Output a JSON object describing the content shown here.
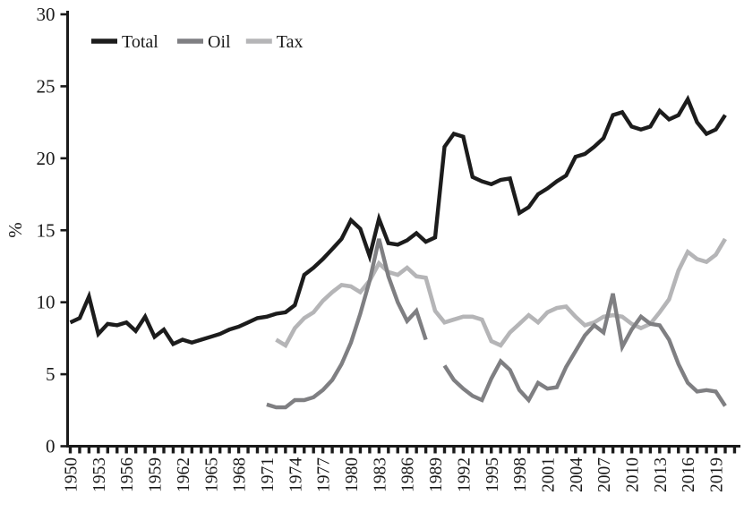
{
  "chart_data": {
    "type": "line",
    "title": "",
    "xlabel": "",
    "ylabel": "%",
    "ylim": [
      0,
      30
    ],
    "yticks": [
      0,
      5,
      10,
      15,
      20,
      25,
      30
    ],
    "x_start": 1950,
    "x_axis_end": 2021,
    "xtick_every_years": 1,
    "xtick_label_years": [
      1950,
      1953,
      1956,
      1959,
      1962,
      1965,
      1968,
      1971,
      1974,
      1977,
      1980,
      1983,
      1986,
      1989,
      1992,
      1995,
      1998,
      2001,
      2004,
      2007,
      2010,
      2013,
      2016,
      2019
    ],
    "grid": false,
    "legend_position": "top-left-inside",
    "axis_color": "#1a1a1a",
    "background_color": "#ffffff",
    "x": [
      1950,
      1951,
      1952,
      1953,
      1954,
      1955,
      1956,
      1957,
      1958,
      1959,
      1960,
      1961,
      1962,
      1963,
      1964,
      1965,
      1966,
      1967,
      1968,
      1969,
      1970,
      1971,
      1972,
      1973,
      1974,
      1975,
      1976,
      1977,
      1978,
      1979,
      1980,
      1981,
      1982,
      1983,
      1984,
      1985,
      1986,
      1987,
      1988,
      1989,
      1990,
      1991,
      1992,
      1993,
      1994,
      1995,
      1996,
      1997,
      1998,
      1999,
      2000,
      2001,
      2002,
      2003,
      2004,
      2005,
      2006,
      2007,
      2008,
      2009,
      2010,
      2011,
      2012,
      2013,
      2014,
      2015,
      2016,
      2017,
      2018,
      2019,
      2020
    ],
    "series": [
      {
        "name": "Total",
        "color": "#1c1c1c",
        "stroke_width": 4.4,
        "values": [
          8.6,
          8.9,
          10.4,
          7.8,
          8.5,
          8.4,
          8.6,
          8.0,
          9.0,
          7.6,
          8.1,
          7.1,
          7.4,
          7.2,
          7.4,
          7.6,
          7.8,
          8.1,
          8.3,
          8.6,
          8.9,
          9.0,
          9.2,
          9.3,
          9.8,
          11.9,
          12.4,
          13.0,
          13.7,
          14.4,
          15.7,
          15.1,
          13.2,
          15.8,
          14.1,
          14.0,
          14.3,
          14.8,
          14.2,
          14.5,
          20.8,
          21.7,
          21.5,
          18.7,
          18.4,
          18.2,
          18.5,
          18.6,
          16.2,
          16.6,
          17.5,
          17.9,
          18.4,
          18.8,
          20.1,
          20.3,
          20.8,
          21.4,
          23.0,
          23.2,
          22.2,
          22.0,
          22.2,
          23.3,
          22.7,
          23.0,
          24.1,
          22.5,
          21.7,
          22.0,
          23.0
        ]
      },
      {
        "name": "Oil",
        "color": "#7f7f82",
        "stroke_width": 4.4,
        "values": [
          null,
          null,
          null,
          null,
          null,
          null,
          null,
          null,
          null,
          null,
          null,
          null,
          null,
          null,
          null,
          null,
          null,
          null,
          null,
          null,
          null,
          2.9,
          2.7,
          2.7,
          3.2,
          3.2,
          3.4,
          3.9,
          4.6,
          5.7,
          7.2,
          9.2,
          11.5,
          14.4,
          11.8,
          10.0,
          8.7,
          9.4,
          7.4,
          null,
          5.6,
          4.6,
          4.0,
          3.5,
          3.2,
          4.7,
          5.9,
          5.3,
          3.9,
          3.2,
          4.4,
          4.0,
          4.1,
          5.5,
          6.6,
          7.7,
          8.4,
          7.9,
          10.6,
          6.9,
          8.1,
          9.0,
          8.5,
          8.4,
          7.4,
          5.7,
          4.4,
          3.8,
          3.9,
          3.8,
          2.8
        ]
      },
      {
        "name": "Tax",
        "color": "#b5b5b7",
        "stroke_width": 4.6,
        "values": [
          null,
          null,
          null,
          null,
          null,
          null,
          null,
          null,
          null,
          null,
          null,
          null,
          null,
          null,
          null,
          null,
          null,
          null,
          null,
          null,
          null,
          null,
          7.4,
          7.0,
          8.2,
          8.9,
          9.3,
          10.1,
          10.7,
          11.2,
          11.1,
          10.7,
          11.5,
          12.7,
          12.1,
          11.9,
          12.4,
          11.8,
          11.7,
          9.4,
          8.6,
          8.8,
          9.0,
          9.0,
          8.8,
          7.3,
          7.0,
          7.9,
          8.5,
          9.1,
          8.6,
          9.3,
          9.6,
          9.7,
          9.0,
          8.4,
          8.6,
          9.0,
          9.1,
          9.0,
          8.5,
          8.2,
          8.5,
          9.3,
          10.2,
          12.2,
          13.5,
          13.0,
          12.8,
          13.3,
          14.4
        ]
      }
    ]
  }
}
